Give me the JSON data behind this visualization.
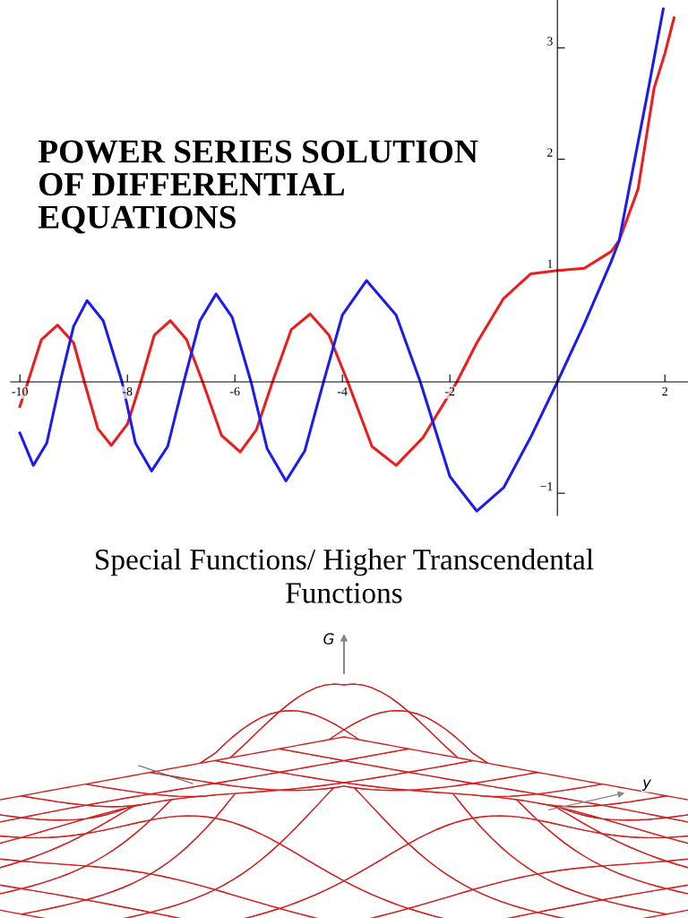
{
  "chart_data": {
    "type": "line",
    "title": "POWER SERIES SOLUTION\nOF DIFFERENTIAL\nEQUATIONS",
    "subtitle": "Special Functions/ Higher Transcendental\nFunctions",
    "annotations": [
      "G",
      "y"
    ],
    "xlim": [
      -10.17,
      2.43
    ],
    "ylim": [
      -1.2,
      3.43
    ],
    "xticks": [
      -10,
      -8,
      -6,
      -4,
      -2,
      2
    ],
    "yticks": [
      {
        "value": -1,
        "label": "−1"
      },
      1,
      2,
      3
    ],
    "grid": false,
    "marker": "none",
    "line_style": "solid",
    "series": [
      {
        "color": "#ee1c1c",
        "x": [
          -10,
          -9.85,
          -9.6,
          -9.3,
          -9.0,
          -8.8,
          -8.55,
          -8.3,
          -8.0,
          -7.75,
          -7.5,
          -7.2,
          -6.9,
          -6.6,
          -6.25,
          -5.9,
          -5.6,
          -5.3,
          -4.95,
          -4.6,
          -4.25,
          -3.9,
          -3.45,
          -3.0,
          -2.5,
          -1.87,
          -1.5,
          -1.0,
          -0.5,
          0,
          0.5,
          1.0,
          1.15,
          1.5,
          1.8,
          2.0,
          2.17
        ],
        "values": [
          -0.22,
          0,
          0.38,
          0.51,
          0.35,
          0,
          -0.42,
          -0.57,
          -0.38,
          0,
          0.42,
          0.55,
          0.38,
          0,
          -0.48,
          -0.63,
          -0.43,
          0,
          0.47,
          0.61,
          0.42,
          0,
          -0.58,
          -0.75,
          -0.5,
          0,
          0.35,
          0.75,
          0.97,
          1.0,
          1.02,
          1.17,
          1.27,
          1.73,
          2.64,
          2.95,
          3.27
        ]
      },
      {
        "color": "#1c1cee",
        "x": [
          -10,
          -9.75,
          -9.5,
          -9.25,
          -9.0,
          -8.75,
          -8.45,
          -8.1,
          -7.85,
          -7.55,
          -7.25,
          -6.95,
          -6.65,
          -6.35,
          -6.05,
          -5.7,
          -5.4,
          -5.05,
          -4.7,
          -4.35,
          -4.0,
          -3.55,
          -3.0,
          -2.55,
          -2.0,
          -1.5,
          -1.0,
          -0.5,
          0,
          0.5,
          1.0,
          1.15,
          1.4,
          1.7,
          1.97
        ],
        "values": [
          -0.46,
          -0.75,
          -0.55,
          0,
          0.5,
          0.73,
          0.55,
          0,
          -0.55,
          -0.8,
          -0.58,
          0,
          0.55,
          0.79,
          0.58,
          0,
          -0.6,
          -0.89,
          -0.62,
          0,
          0.6,
          0.91,
          0.6,
          0,
          -0.85,
          -1.16,
          -0.95,
          -0.5,
          0,
          0.52,
          1.08,
          1.27,
          1.9,
          2.65,
          3.35
        ]
      }
    ]
  }
}
